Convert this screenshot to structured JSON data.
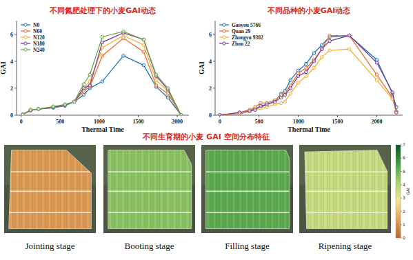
{
  "chart_data": [
    {
      "type": "line",
      "title": "不同氮肥处理下的小麦GAI动态",
      "x_label": "Thermal Time",
      "y_label": "GAI",
      "x": [
        20,
        120,
        220,
        410,
        560,
        680,
        800,
        880,
        1040,
        1310,
        1570,
        1730,
        1880,
        2050
      ],
      "series": [
        {
          "name": "N0",
          "color": "#1f77b4",
          "values": [
            0.05,
            0.35,
            0.45,
            0.55,
            0.7,
            1.0,
            1.5,
            2.0,
            2.5,
            4.4,
            3.7,
            2.1,
            1.3,
            0
          ]
        },
        {
          "name": "N60",
          "color": "#e8702a",
          "values": [
            0.05,
            0.35,
            0.45,
            0.6,
            0.75,
            1.0,
            1.8,
            2.1,
            4.4,
            5.7,
            4.7,
            2.2,
            1.6,
            0
          ]
        },
        {
          "name": "N120",
          "color": "#f2b134",
          "values": [
            0.05,
            0.4,
            0.45,
            0.6,
            0.75,
            1.0,
            2.0,
            2.5,
            5.0,
            5.9,
            5.2,
            2.6,
            1.8,
            0
          ]
        },
        {
          "name": "N180",
          "color": "#7b3f9e",
          "values": [
            0.05,
            0.35,
            0.45,
            0.6,
            0.75,
            1.0,
            2.0,
            2.2,
            5.4,
            6.1,
            5.6,
            2.9,
            1.9,
            0
          ]
        },
        {
          "name": "N240",
          "color": "#6aa84f",
          "values": [
            0.05,
            0.4,
            0.45,
            0.65,
            0.8,
            1.0,
            2.3,
            3.0,
            5.8,
            6.2,
            5.6,
            3.0,
            2.0,
            0
          ]
        }
      ],
      "xlim": [
        -60,
        2150
      ],
      "xticks": [
        0,
        500,
        1000,
        1500,
        2000
      ],
      "ylim": [
        0,
        7
      ],
      "yticks": [
        0,
        2,
        4,
        6
      ],
      "grid": false,
      "legend": "upper left",
      "marker": "circle",
      "line_style": "solid"
    },
    {
      "type": "line",
      "title": "不同品种的小麦GAI动态",
      "x_label": "Thermal Time",
      "y_label": "GAI",
      "x": [
        0,
        250,
        380,
        450,
        520,
        600,
        700,
        780,
        830,
        900,
        1000,
        1100,
        1200,
        1300,
        1400,
        1650,
        2000,
        2200,
        2250
      ],
      "series": [
        {
          "name": "Gaoyou 5766",
          "color": "#1f77b4",
          "values": [
            0,
            0.1,
            0.3,
            0.5,
            0.6,
            0.8,
            1.0,
            1.6,
            1.8,
            2.6,
            3.3,
            3.8,
            4.6,
            5.2,
            5.8,
            5.9,
            4.1,
            1.6,
            0.6
          ]
        },
        {
          "name": "Quan 29",
          "color": "#e8702a",
          "values": [
            0,
            0.2,
            0.4,
            0.6,
            0.9,
            0.9,
            1.1,
            1.5,
            1.6,
            2.2,
            3.1,
            3.5,
            4.1,
            4.9,
            5.9,
            5.9,
            3.0,
            1.3,
            0.3
          ]
        },
        {
          "name": "Zhongyu 9302",
          "color": "#f2b134",
          "values": [
            0,
            0.1,
            0.3,
            0.4,
            0.5,
            0.6,
            0.8,
            0.9,
            1.0,
            1.6,
            2.4,
            2.9,
            3.5,
            4.3,
            4.8,
            4.9,
            2.6,
            1.2,
            0.2
          ]
        },
        {
          "name": "Zhou 22",
          "color": "#7b3f9e",
          "values": [
            0,
            0.2,
            0.3,
            0.4,
            0.7,
            0.8,
            1.0,
            1.3,
            1.5,
            2.0,
            2.9,
            3.2,
            4.0,
            4.9,
            5.5,
            5.9,
            3.9,
            1.7,
            0.2
          ]
        }
      ],
      "xlim": [
        -60,
        2330
      ],
      "xticks": [
        0,
        500,
        1000,
        1500,
        2000
      ],
      "ylim": [
        0,
        7
      ],
      "yticks": [
        0,
        2,
        4,
        6
      ],
      "grid": false,
      "legend": "upper left",
      "marker": "circle",
      "line_style": "solid"
    }
  ],
  "maps": {
    "title": "不同生育期的小麦 GAI 空间分布特征",
    "stages": [
      {
        "label": "Jointing stage",
        "gai": 1.2
      },
      {
        "label": "Booting stage",
        "gai": 4.6
      },
      {
        "label": "Filling stage",
        "gai": 5.2
      },
      {
        "label": "Ripening stage",
        "gai": 3.6
      }
    ],
    "colorbar": {
      "label": "GAI",
      "range": [
        0,
        7
      ],
      "ticks": [
        0,
        1,
        2,
        3,
        4,
        5,
        6,
        7
      ]
    }
  }
}
